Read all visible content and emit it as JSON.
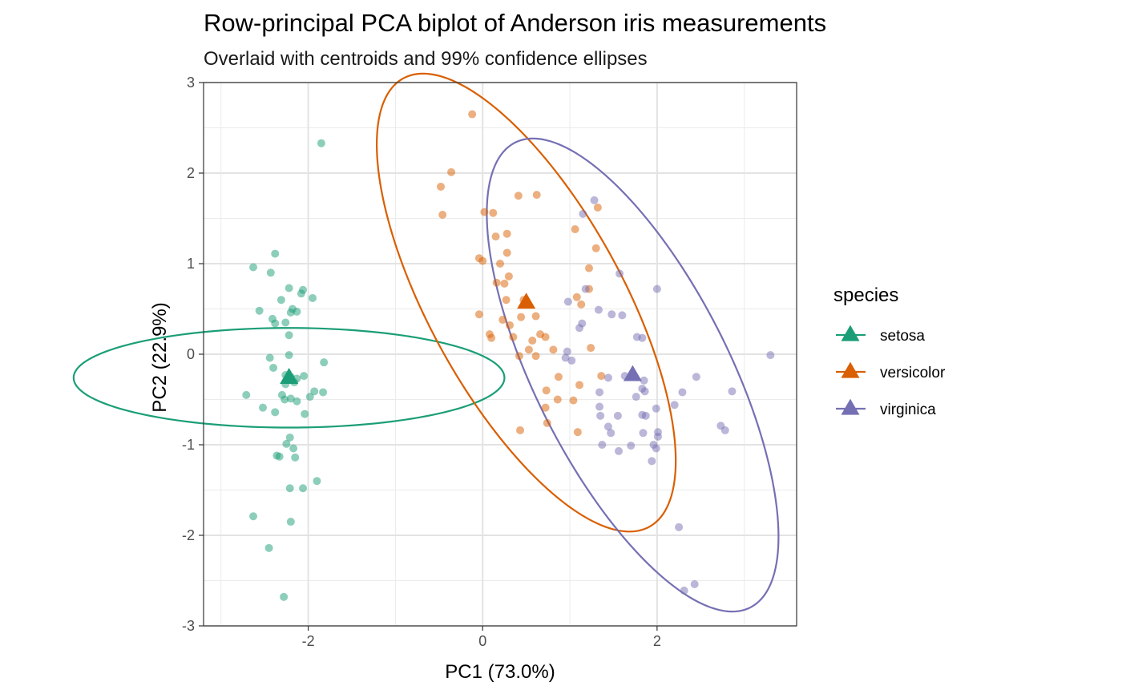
{
  "chart_data": {
    "type": "scatter",
    "title": "Row-principal PCA biplot of Anderson iris measurements",
    "subtitle": "Overlaid with centroids and 99% confidence ellipses",
    "xlabel": "PC1 (73.0%)",
    "ylabel": "PC2 (22.9%)",
    "xlim": [
      -3.2,
      3.6
    ],
    "ylim": [
      -3.0,
      3.0
    ],
    "x_ticks": [
      -2,
      0,
      2
    ],
    "x_tick_labels": [
      "-2",
      "0",
      "2"
    ],
    "y_ticks": [
      -3,
      -2,
      -1,
      0,
      1,
      2,
      3
    ],
    "y_tick_labels": [
      "-3",
      "-2",
      "-1",
      "0",
      "1",
      "2",
      "3"
    ],
    "grid": true,
    "legend": {
      "title": "species",
      "position": "right",
      "entries": [
        "setosa",
        "versicolor",
        "virginica"
      ]
    },
    "colors": {
      "setosa": "#1b9e77",
      "versicolor": "#d95f02",
      "virginica": "#7570b3"
    },
    "series": [
      {
        "name": "setosa",
        "centroid": [
          -2.22,
          -0.26
        ],
        "ellipse": {
          "center": [
            -2.22,
            -0.26
          ],
          "semi_axes": [
            0.55,
            2.47
          ],
          "angle_deg": 90
        },
        "points": [
          [
            -1.85,
            2.33
          ],
          [
            -2.38,
            1.11
          ],
          [
            -2.63,
            0.96
          ],
          [
            -2.43,
            0.9
          ],
          [
            -2.22,
            0.73
          ],
          [
            -2.06,
            0.71
          ],
          [
            -2.08,
            0.67
          ],
          [
            -2.31,
            0.6
          ],
          [
            -1.95,
            0.62
          ],
          [
            -2.18,
            0.5
          ],
          [
            -2.13,
            0.47
          ],
          [
            -2.2,
            0.46
          ],
          [
            -2.56,
            0.48
          ],
          [
            -2.41,
            0.39
          ],
          [
            -2.26,
            0.35
          ],
          [
            -2.38,
            0.34
          ],
          [
            -2.22,
            0.21
          ],
          [
            -2.22,
            -0.01
          ],
          [
            -1.82,
            -0.09
          ],
          [
            -2.44,
            -0.04
          ],
          [
            -2.4,
            -0.15
          ],
          [
            -2.26,
            -0.23
          ],
          [
            -2.2,
            -0.25
          ],
          [
            -2.13,
            -0.27
          ],
          [
            -2.16,
            -0.31
          ],
          [
            -2.26,
            -0.33
          ],
          [
            -2.05,
            -0.24
          ],
          [
            -2.71,
            -0.45
          ],
          [
            -2.3,
            -0.45
          ],
          [
            -2.2,
            -0.49
          ],
          [
            -2.27,
            -0.5
          ],
          [
            -2.13,
            -0.52
          ],
          [
            -1.93,
            -0.41
          ],
          [
            -1.83,
            -0.42
          ],
          [
            -1.98,
            -0.47
          ],
          [
            -2.52,
            -0.59
          ],
          [
            -2.38,
            -0.64
          ],
          [
            -2.04,
            -0.66
          ],
          [
            -2.21,
            -0.92
          ],
          [
            -2.25,
            -0.99
          ],
          [
            -2.17,
            -1.04
          ],
          [
            -2.36,
            -1.12
          ],
          [
            -2.33,
            -1.13
          ],
          [
            -2.15,
            -1.14
          ],
          [
            -1.9,
            -1.4
          ],
          [
            -2.06,
            -1.48
          ],
          [
            -2.21,
            -1.48
          ],
          [
            -2.63,
            -1.79
          ],
          [
            -2.2,
            -1.85
          ],
          [
            -2.45,
            -2.14
          ],
          [
            -2.28,
            -2.68
          ]
        ]
      },
      {
        "name": "versicolor",
        "centroid": [
          0.5,
          0.57
        ],
        "ellipse": {
          "center": [
            0.5,
            0.57
          ],
          "semi_axes": [
            2.85,
            1.1
          ],
          "angle_deg": -60
        },
        "points": [
          [
            -0.12,
            2.65
          ],
          [
            -0.36,
            2.01
          ],
          [
            -0.48,
            1.85
          ],
          [
            -0.46,
            1.54
          ],
          [
            0.41,
            1.75
          ],
          [
            0.62,
            1.76
          ],
          [
            0.02,
            1.57
          ],
          [
            0.12,
            1.56
          ],
          [
            0.15,
            1.3
          ],
          [
            0.28,
            1.33
          ],
          [
            0.28,
            1.12
          ],
          [
            -0.04,
            1.06
          ],
          [
            0.0,
            1.03
          ],
          [
            0.2,
            1.0
          ],
          [
            0.3,
            0.86
          ],
          [
            0.16,
            0.79
          ],
          [
            0.25,
            0.78
          ],
          [
            1.32,
            1.62
          ],
          [
            1.3,
            1.17
          ],
          [
            1.06,
            1.38
          ],
          [
            1.22,
            0.95
          ],
          [
            1.08,
            0.63
          ],
          [
            1.22,
            0.72
          ],
          [
            1.13,
            0.55
          ],
          [
            0.47,
            0.6
          ],
          [
            0.27,
            0.6
          ],
          [
            0.44,
            0.41
          ],
          [
            0.61,
            0.42
          ],
          [
            -0.04,
            0.44
          ],
          [
            0.23,
            0.38
          ],
          [
            0.31,
            0.32
          ],
          [
            0.08,
            0.22
          ],
          [
            0.35,
            0.19
          ],
          [
            0.1,
            0.18
          ],
          [
            0.66,
            0.22
          ],
          [
            0.72,
            0.19
          ],
          [
            0.57,
            0.15
          ],
          [
            0.53,
            0.05
          ],
          [
            0.81,
            0.05
          ],
          [
            0.61,
            -0.02
          ],
          [
            0.42,
            -0.02
          ],
          [
            0.87,
            -0.25
          ],
          [
            1.24,
            0.07
          ],
          [
            1.36,
            -0.24
          ],
          [
            1.11,
            -0.34
          ],
          [
            0.73,
            -0.4
          ],
          [
            0.86,
            -0.5
          ],
          [
            1.04,
            -0.51
          ],
          [
            0.72,
            -0.59
          ],
          [
            0.74,
            -0.76
          ],
          [
            0.43,
            -0.84
          ],
          [
            1.09,
            -0.86
          ]
        ]
      },
      {
        "name": "virginica",
        "centroid": [
          1.72,
          -0.23
        ],
        "ellipse": {
          "center": [
            1.72,
            -0.23
          ],
          "semi_axes": [
            2.9,
            1.1
          ],
          "angle_deg": -62
        },
        "points": [
          [
            1.28,
            1.7
          ],
          [
            1.15,
            1.55
          ],
          [
            0.98,
            0.58
          ],
          [
            1.57,
            0.89
          ],
          [
            2.0,
            0.72
          ],
          [
            1.18,
            0.72
          ],
          [
            1.48,
            0.44
          ],
          [
            1.33,
            0.49
          ],
          [
            1.6,
            0.43
          ],
          [
            1.14,
            0.34
          ],
          [
            1.11,
            0.29
          ],
          [
            1.77,
            0.19
          ],
          [
            1.83,
            0.18
          ],
          [
            0.97,
            0.03
          ],
          [
            0.95,
            -0.04
          ],
          [
            1.02,
            -0.07
          ],
          [
            1.44,
            -0.26
          ],
          [
            1.63,
            -0.24
          ],
          [
            1.85,
            -0.29
          ],
          [
            2.45,
            -0.25
          ],
          [
            1.83,
            -0.38
          ],
          [
            1.86,
            -0.41
          ],
          [
            2.29,
            -0.42
          ],
          [
            2.86,
            -0.41
          ],
          [
            3.3,
            -0.01
          ],
          [
            1.34,
            -0.42
          ],
          [
            1.34,
            -0.58
          ],
          [
            1.35,
            -0.68
          ],
          [
            1.55,
            -0.68
          ],
          [
            1.83,
            -0.67
          ],
          [
            1.87,
            -0.68
          ],
          [
            1.99,
            -0.6
          ],
          [
            2.2,
            -0.56
          ],
          [
            1.47,
            -0.87
          ],
          [
            1.84,
            -0.87
          ],
          [
            2.01,
            -0.86
          ],
          [
            2.01,
            -0.91
          ],
          [
            2.73,
            -0.79
          ],
          [
            2.78,
            -0.84
          ],
          [
            1.37,
            -1.0
          ],
          [
            1.7,
            -1.01
          ],
          [
            1.96,
            -1.0
          ],
          [
            1.99,
            -1.04
          ],
          [
            1.56,
            -1.07
          ],
          [
            2.25,
            -1.91
          ],
          [
            2.43,
            -2.54
          ],
          [
            2.31,
            -2.61
          ],
          [
            1.94,
            -1.18
          ],
          [
            1.76,
            -0.47
          ],
          [
            1.44,
            -0.8
          ]
        ]
      }
    ]
  }
}
